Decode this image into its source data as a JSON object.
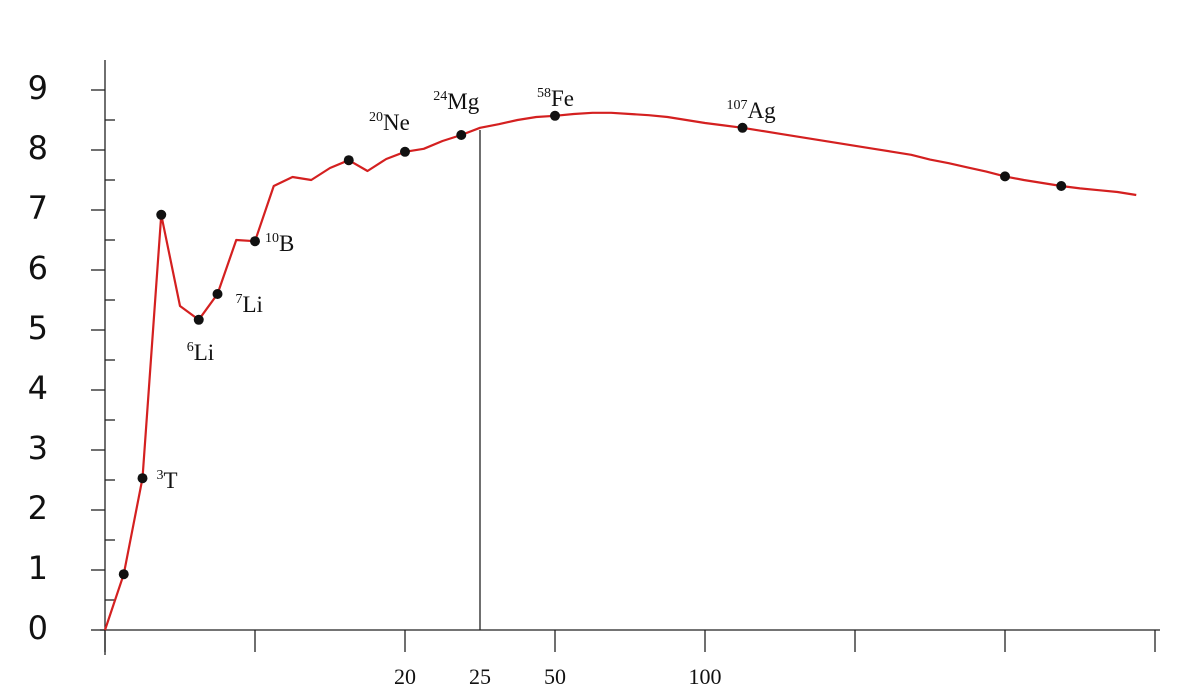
{
  "chart_data": {
    "type": "line",
    "categories": [
      null,
      null,
      null,
      null,
      null,
      null,
      null,
      null,
      null,
      null,
      null,
      null,
      null,
      null,
      null,
      null,
      "20",
      null,
      null,
      null,
      "25",
      null,
      null,
      null,
      "50",
      null,
      null,
      null,
      null,
      null,
      null,
      null,
      "100",
      null,
      null,
      null,
      null,
      null,
      null,
      null,
      null,
      null,
      null,
      null,
      null,
      null,
      null,
      null,
      null,
      null,
      null,
      null,
      null,
      null,
      null,
      null,
      null
    ],
    "series": [
      {
        "color": "#d42020",
        "values": [
          0,
          0.93,
          2.53,
          6.92,
          5.4,
          5.17,
          5.6,
          6.5,
          6.48,
          7.4,
          7.55,
          7.5,
          7.7,
          7.83,
          7.65,
          7.85,
          7.97,
          8.02,
          8.15,
          8.25,
          8.37,
          8.43,
          8.5,
          8.55,
          8.57,
          8.6,
          8.62,
          8.62,
          8.6,
          8.58,
          8.55,
          8.5,
          8.45,
          8.41,
          8.37,
          8.32,
          8.27,
          8.22,
          8.17,
          8.12,
          8.07,
          8.02,
          7.97,
          7.92,
          7.84,
          7.78,
          7.71,
          7.64,
          7.56,
          7.5,
          7.45,
          7.4,
          7.36,
          7.33,
          7.3,
          7.25,
          null
        ]
      },
      {
        "color": "#111111",
        "values": [
          null,
          0.93,
          2.53,
          6.92,
          null,
          5.17,
          5.6,
          null,
          6.48,
          null,
          null,
          null,
          null,
          7.83,
          null,
          null,
          7.97,
          null,
          null,
          8.25,
          null,
          null,
          null,
          null,
          8.57,
          null,
          null,
          null,
          null,
          null,
          null,
          null,
          null,
          null,
          8.37,
          null,
          null,
          null,
          null,
          null,
          null,
          null,
          null,
          null,
          null,
          null,
          null,
          null,
          7.56,
          null,
          null,
          7.4,
          null,
          null,
          null,
          null,
          null
        ]
      }
    ],
    "annotations": [
      {
        "mass": "3",
        "symbol": "T"
      },
      {
        "mass": "6",
        "symbol": "Li"
      },
      {
        "mass": "7",
        "symbol": "Li"
      },
      {
        "mass": "10",
        "symbol": "B"
      },
      {
        "mass": "20",
        "symbol": "Ne"
      },
      {
        "mass": "24",
        "symbol": "Mg"
      },
      {
        "mass": "58",
        "symbol": "Fe"
      },
      {
        "mass": "107",
        "symbol": "Ag"
      }
    ],
    "ylim": [
      0,
      9
    ],
    "yticks": [
      0,
      1,
      2,
      3,
      4,
      5,
      6,
      7,
      8,
      9
    ]
  }
}
